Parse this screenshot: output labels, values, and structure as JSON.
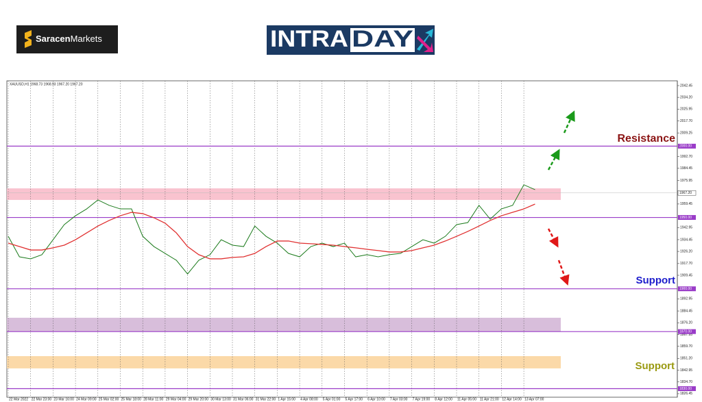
{
  "brand": {
    "bold": "Saracen",
    "rest": "Markets"
  },
  "banner": {
    "left": "INTRA",
    "right": "DAY"
  },
  "chart_data": {
    "type": "line",
    "legend_text": "XAUUSD,H1  1968.73 1968.93 1967.20 1967.20",
    "categories": [
      "22 Mar 2022",
      null,
      "22 Mar 23:00",
      null,
      "23 Mar 16:00",
      null,
      "24 Mar 09:00",
      null,
      "25 Mar 02:00",
      null,
      "25 Mar 18:00",
      null,
      "28 Mar 11:00",
      null,
      "29 Mar 04:00",
      null,
      "29 Mar 20:00",
      null,
      "30 Mar 13:00",
      null,
      "31 Mar 06:00",
      null,
      "31 Mar 22:00",
      null,
      "1 Apr 15:00",
      null,
      "4 Apr 08:00",
      null,
      "5 Apr 01:00",
      null,
      "5 Apr 17:00",
      null,
      "6 Apr 10:00",
      null,
      "7 Apr 03:00",
      null,
      "7 Apr 19:00",
      null,
      "8 Apr 12:00",
      null,
      "11 Apr 05:00",
      null,
      "11 Apr 21:00",
      null,
      "12 Apr 14:00",
      null,
      "13 Apr 07:00",
      null
    ],
    "series": [
      {
        "color": "#1a7a1a",
        "values": [
          1936.8,
          1922.4,
          1921,
          1923.9,
          1934.4,
          1945,
          1951.2,
          1956,
          1962.3,
          1958.5,
          1956,
          1956,
          1936.8,
          1929.6,
          1924.8,
          1920,
          1910.4,
          1920,
          1923.9,
          1934.4,
          1930.6,
          1929.6,
          1944,
          1936.8,
          1932,
          1924.8,
          1922.4,
          1929.6,
          1932,
          1929.6,
          1932,
          1922.4,
          1923.9,
          1922.4,
          1923.9,
          1924.8,
          1929.6,
          1934.4,
          1932,
          1936.8,
          1945,
          1946.4,
          1958.5,
          1948.8,
          1956,
          1958.5,
          1972.9,
          1969.5
        ]
      },
      {
        "color": "#e03030",
        "values": [
          1932,
          1929.6,
          1927.2,
          1927.2,
          1928.7,
          1930.6,
          1934.4,
          1939.2,
          1944,
          1947.9,
          1951.2,
          1953.6,
          1952.7,
          1949.8,
          1946,
          1939.2,
          1929.6,
          1923.9,
          1921,
          1921,
          1922,
          1922.4,
          1924.8,
          1929.6,
          1933.5,
          1933.5,
          1932,
          1931.6,
          1931.1,
          1930.6,
          1929.6,
          1928.7,
          1927.7,
          1926.8,
          1925.8,
          1925.8,
          1926.8,
          1928.7,
          1930.6,
          1933.5,
          1936.8,
          1940.2,
          1944,
          1947.9,
          1951.2,
          1953.6,
          1956,
          1959.4
        ]
      }
    ],
    "ylim": [
      1824,
      2045.8
    ],
    "yticks": [
      2042.45,
      {
        "value": 2034.2,
        "label": "2034.20"
      },
      2025.95,
      {
        "value": 2017.7,
        "label": "2017.70"
      },
      2009.25,
      {
        "value": 1992.7,
        "label": "1992.70"
      },
      1984.45,
      1975.95,
      1959.45,
      1942.95,
      1934.45,
      {
        "value": 1926.2,
        "label": "1926.20"
      },
      {
        "value": 1917.7,
        "label": "1917.70"
      },
      1909.45,
      1892.95,
      1884.45,
      {
        "value": 1876.2,
        "label": "1876.20"
      },
      1867.95,
      {
        "value": 1859.7,
        "label": "1859.70"
      },
      {
        "value": 1851.2,
        "label": "1851.20"
      },
      1842.95,
      {
        "value": 1834.7,
        "label": "1834.70"
      },
      1826.45
    ],
    "levels": [
      {
        "value": 2000,
        "label": "2000.00"
      },
      {
        "value": 1950,
        "label": "1950.00"
      },
      {
        "value": 1900,
        "label": "1900.00"
      },
      {
        "value": 1870,
        "label": "1870.00"
      },
      {
        "value": 1830,
        "label": "1830.00"
      }
    ],
    "level_color": "#9a3cc8",
    "current_price": {
      "value": 1967.2,
      "label": "1967.20"
    },
    "zones": [
      {
        "from": 1962.3,
        "to": 1970.4,
        "color": "#f9c3cf"
      },
      {
        "from": 1870.1,
        "to": 1879.7,
        "color": "#d8bedb"
      },
      {
        "from": 1844.2,
        "to": 1852.8,
        "color": "#fbd9a8"
      }
    ],
    "annotations": [
      {
        "text": "Resistance",
        "color": "#8b1414"
      },
      {
        "text": "Support",
        "color": "#1c1ccc"
      },
      {
        "text": "Support",
        "color": "#9a9a12"
      }
    ]
  }
}
